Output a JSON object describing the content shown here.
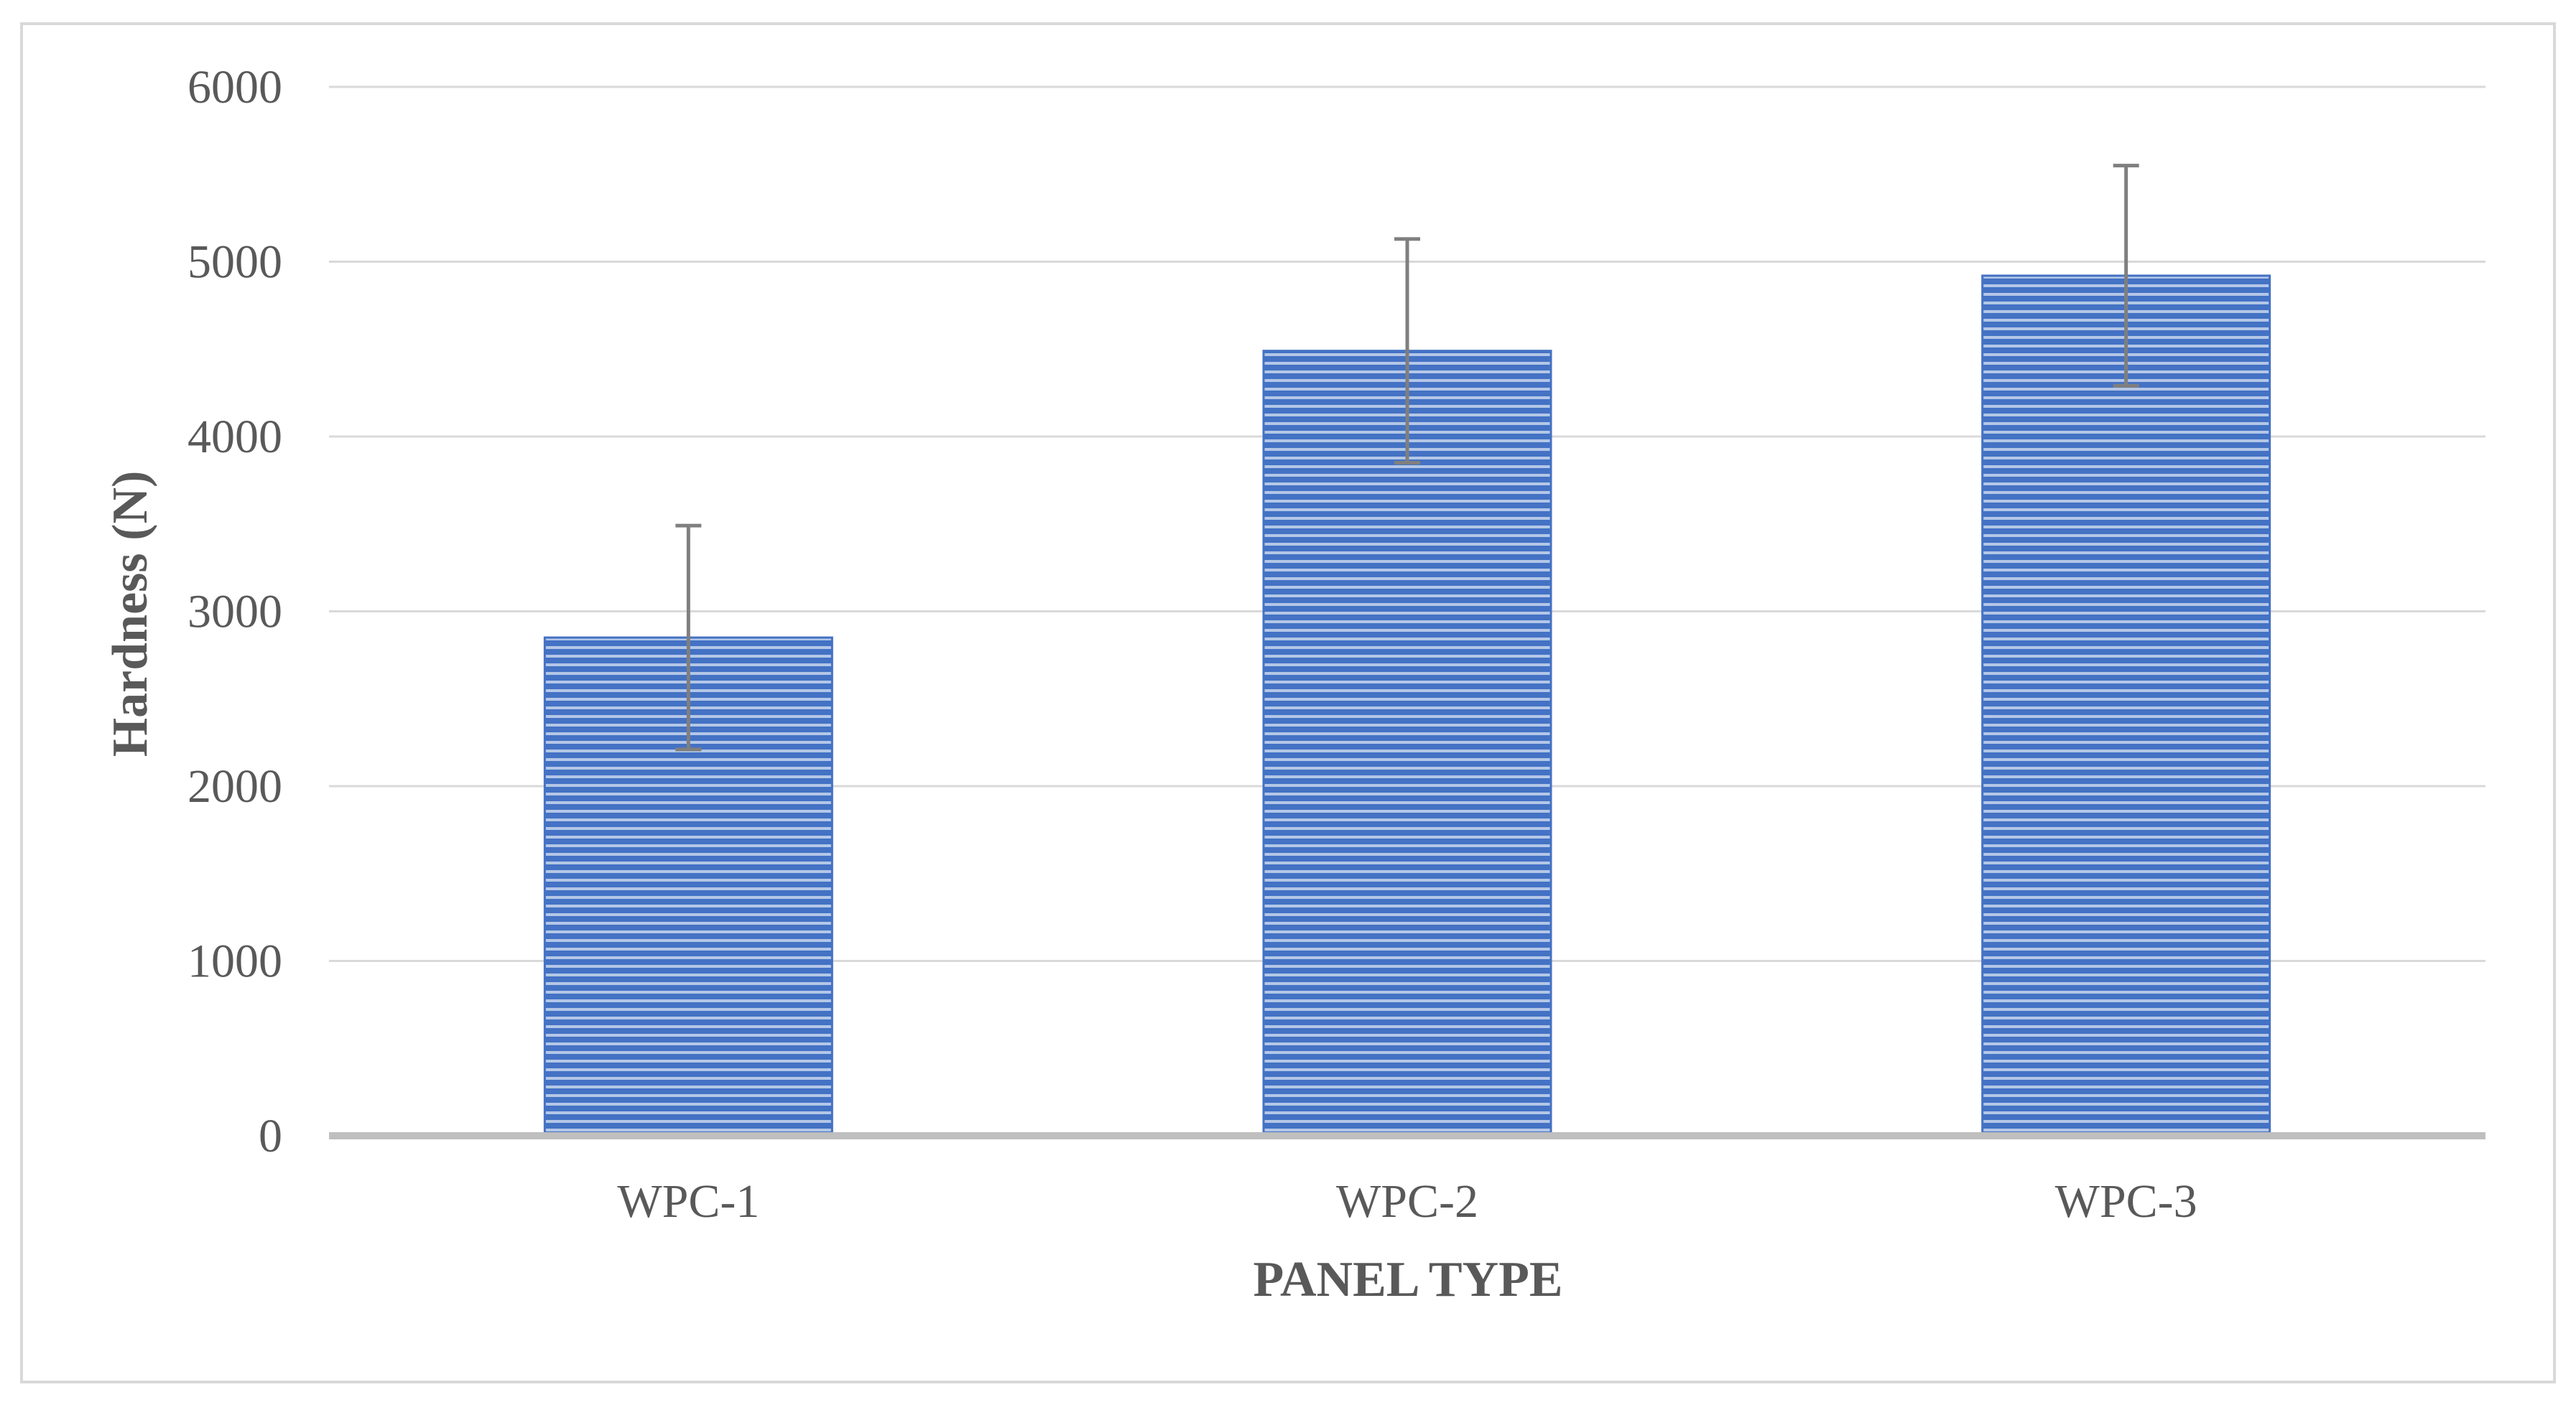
{
  "chart_data": {
    "type": "bar",
    "categories": [
      "WPC-1",
      "WPC-2",
      "WPC-3"
    ],
    "values": [
      2850,
      4490,
      4920
    ],
    "error": [
      640,
      640,
      630
    ],
    "xlabel": "PANEL TYPE",
    "ylabel": "Hardness (N)",
    "ylim": [
      0,
      6000
    ],
    "yticks": [
      0,
      1000,
      2000,
      3000,
      4000,
      5000,
      6000
    ],
    "grid": true,
    "legend": "none",
    "colors": {
      "bar_fill": "#4472c4",
      "bar_stripe": "#b4c7e7",
      "error_bar": "#7f7f7f",
      "gridline": "#d9d9d9",
      "baseline": "#bfbfbf",
      "border": "#d9d9d9"
    }
  }
}
